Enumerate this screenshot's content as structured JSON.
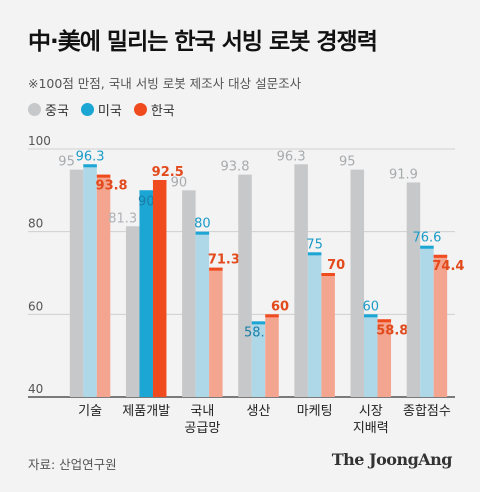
{
  "title": "中·美에 밀리는 한국 서빙 로봇 경쟁력",
  "subtitle": "※100점 만점, 국내 서빙 로봇 제조사 대상 설문조사",
  "source": "자료: 산업연구원",
  "brand": "The JoongAng",
  "colors": {
    "china": "#c6c8ca",
    "usa": "#1ba6d4",
    "usa_light": "#aed8e8",
    "korea": "#f04b1e",
    "korea_light": "#f4a590",
    "china_label": "#a8abae",
    "usa_label": "#1b9bc7",
    "korea_label": "#e24a1c"
  },
  "chart_data": {
    "type": "bar",
    "categories": [
      "기술",
      "제품개발",
      "국내\n공급망",
      "생산",
      "마케팅",
      "시장\n지배력",
      "종합점수"
    ],
    "series": [
      {
        "name": "중국",
        "values": [
          95,
          81.3,
          90,
          93.8,
          96.3,
          95,
          91.9
        ]
      },
      {
        "name": "미국",
        "values": [
          96.3,
          90,
          80,
          58.3,
          75,
          60,
          76.6
        ]
      },
      {
        "name": "한국",
        "values": [
          93.8,
          92.5,
          71.3,
          60,
          70,
          58.8,
          74.4
        ]
      }
    ],
    "highlighted_category": "제품개발",
    "ylim": [
      40,
      100
    ],
    "yticks": [
      40,
      60,
      80,
      100
    ]
  }
}
